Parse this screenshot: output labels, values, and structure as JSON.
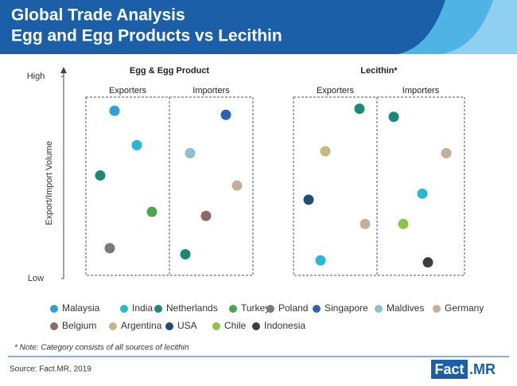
{
  "chart_data": {
    "type": "scatter",
    "title": [
      "Global Trade Analysis",
      "Egg and Egg Products vs Lecithin"
    ],
    "ylabel": "Export/Import Volume",
    "ylim": [
      0,
      100
    ],
    "yticks": [
      {
        "value": 0,
        "label": "Low"
      },
      {
        "value": 100,
        "label": "High"
      }
    ],
    "panels": [
      {
        "title": "Egg & Egg Product",
        "groups": [
          {
            "name": "Exporters",
            "points": [
              {
                "country": "Malaysia",
                "value": 83
              },
              {
                "country": "India",
                "value": 66
              },
              {
                "country": "Netherlands",
                "value": 51
              },
              {
                "country": "Turkey",
                "value": 33
              },
              {
                "country": "Poland",
                "value": 15
              }
            ]
          },
          {
            "name": "Importers",
            "points": [
              {
                "country": "Singapore",
                "value": 81
              },
              {
                "country": "Maldives",
                "value": 62
              },
              {
                "country": "Germany",
                "value": 46
              },
              {
                "country": "Belgium",
                "value": 31
              },
              {
                "country": "Netherlands",
                "value": 12
              }
            ]
          }
        ]
      },
      {
        "title": "Lecithin*",
        "groups": [
          {
            "name": "Exporters",
            "points": [
              {
                "country": "Netherlands",
                "value": 84
              },
              {
                "country": "Argentina",
                "value": 63
              },
              {
                "country": "USA",
                "value": 39
              },
              {
                "country": "Germany",
                "value": 27
              },
              {
                "country": "India",
                "value": 9
              }
            ]
          },
          {
            "name": "Importers",
            "points": [
              {
                "country": "Netherlands",
                "value": 80
              },
              {
                "country": "Germany",
                "value": 62
              },
              {
                "country": "India",
                "value": 42
              },
              {
                "country": "Chile",
                "value": 27
              },
              {
                "country": "Indonesia",
                "value": 8
              }
            ]
          }
        ]
      }
    ],
    "legend": [
      {
        "name": "Malaysia",
        "color": "#2e9fd8"
      },
      {
        "name": "India",
        "color": "#29b8d4"
      },
      {
        "name": "Netherlands",
        "color": "#1a8a78"
      },
      {
        "name": "Turkey",
        "color": "#4aa84a"
      },
      {
        "name": "Poland",
        "color": "#7a7a7a"
      },
      {
        "name": "Singapore",
        "color": "#2d63b0"
      },
      {
        "name": "Maldives",
        "color": "#8fbfc9"
      },
      {
        "name": "Germany",
        "color": "#c4b09a"
      },
      {
        "name": "Belgium",
        "color": "#8b6b63"
      },
      {
        "name": "Argentina",
        "color": "#c1bb7c"
      },
      {
        "name": "USA",
        "color": "#1d4f73"
      },
      {
        "name": "Chile",
        "color": "#8cc443"
      },
      {
        "name": "Indonesia",
        "color": "#3d3d3d"
      }
    ],
    "note": "* Note: Category consists of all sources of lecithin",
    "source": "Source: Fact.MR, 2019",
    "brand": {
      "left": "Fact",
      "right": ".MR"
    }
  }
}
